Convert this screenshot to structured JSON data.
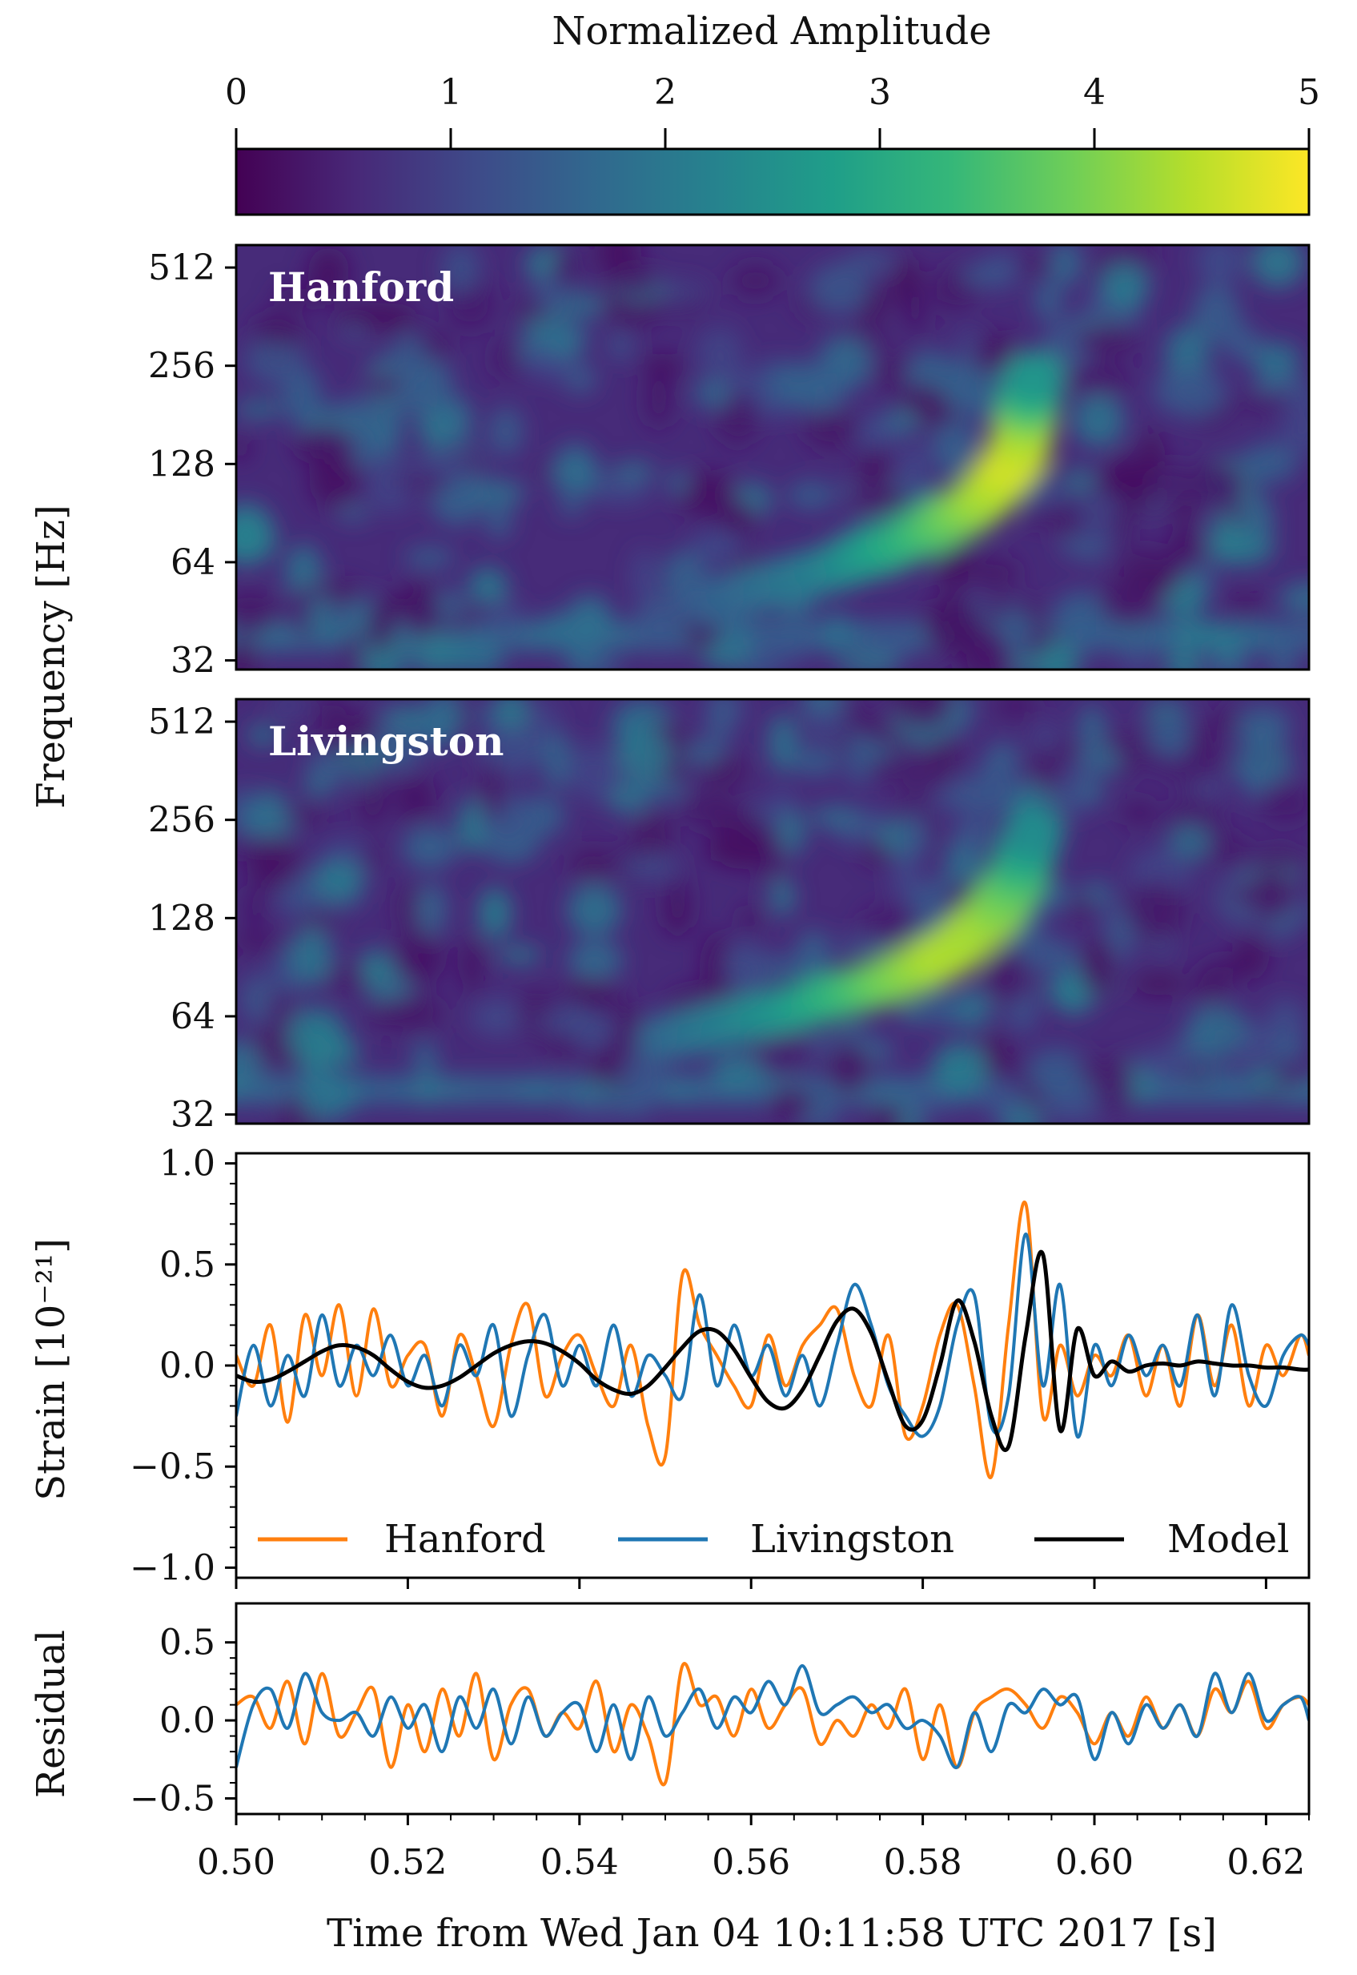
{
  "chart_data": {
    "type": "heatmap+line",
    "colorbar": {
      "label": "Normalized Amplitude",
      "ticks": [
        "0",
        "1",
        "2",
        "3",
        "4",
        "5"
      ],
      "range": [
        0,
        5
      ],
      "colormap": "viridis"
    },
    "spectrograms": [
      {
        "detector": "Hanford",
        "ylabel": "Frequency [Hz]",
        "yscale": "log2",
        "yticks": [
          "32",
          "64",
          "128",
          "256",
          "512"
        ],
        "ylim": [
          30,
          600
        ],
        "xlim": [
          0.5,
          0.625
        ],
        "chirp": [
          {
            "t": 0.555,
            "f": 48,
            "a": 1.4
          },
          {
            "t": 0.57,
            "f": 62,
            "a": 2.2
          },
          {
            "t": 0.58,
            "f": 78,
            "a": 3.3
          },
          {
            "t": 0.587,
            "f": 100,
            "a": 4.2
          },
          {
            "t": 0.591,
            "f": 135,
            "a": 4.7
          },
          {
            "t": 0.592,
            "f": 175,
            "a": 4.3
          },
          {
            "t": 0.593,
            "f": 240,
            "a": 2.6
          }
        ]
      },
      {
        "detector": "Livingston",
        "ylabel": "Frequency [Hz]",
        "yscale": "log2",
        "yticks": [
          "32",
          "64",
          "128",
          "256",
          "512"
        ],
        "ylim": [
          30,
          600
        ],
        "xlim": [
          0.5,
          0.625
        ],
        "chirp": [
          {
            "t": 0.55,
            "f": 55,
            "a": 1.6
          },
          {
            "t": 0.565,
            "f": 68,
            "a": 2.6
          },
          {
            "t": 0.576,
            "f": 82,
            "a": 3.8
          },
          {
            "t": 0.583,
            "f": 100,
            "a": 4.4
          },
          {
            "t": 0.588,
            "f": 128,
            "a": 4.3
          },
          {
            "t": 0.591,
            "f": 170,
            "a": 3.7
          },
          {
            "t": 0.593,
            "f": 240,
            "a": 2.4
          }
        ]
      }
    ],
    "strain": {
      "ylabel": "Strain [10⁻²¹]",
      "ylim": [
        -1.05,
        1.05
      ],
      "yticks": [
        -1.0,
        -0.5,
        0.0,
        0.5,
        1.0
      ],
      "ytick_labels": [
        "−1.0",
        "−0.5",
        "0.0",
        "0.5",
        "1.0"
      ],
      "legend_position": "bottom",
      "series": [
        {
          "name": "Hanford",
          "color": "#ff7f0e",
          "x": [
            0.5,
            0.502,
            0.504,
            0.506,
            0.508,
            0.51,
            0.512,
            0.514,
            0.516,
            0.518,
            0.52,
            0.522,
            0.524,
            0.526,
            0.528,
            0.53,
            0.532,
            0.534,
            0.536,
            0.538,
            0.54,
            0.542,
            0.544,
            0.546,
            0.548,
            0.55,
            0.552,
            0.554,
            0.556,
            0.558,
            0.56,
            0.562,
            0.564,
            0.566,
            0.568,
            0.57,
            0.572,
            0.574,
            0.576,
            0.578,
            0.58,
            0.582,
            0.584,
            0.586,
            0.588,
            0.59,
            0.592,
            0.594,
            0.596,
            0.598,
            0.6,
            0.602,
            0.604,
            0.606,
            0.608,
            0.61,
            0.612,
            0.614,
            0.616,
            0.618,
            0.62,
            0.622,
            0.624,
            0.625
          ],
          "y": [
            0.05,
            -0.1,
            0.2,
            -0.28,
            0.25,
            -0.05,
            0.3,
            -0.15,
            0.28,
            -0.1,
            0.05,
            0.1,
            -0.25,
            0.15,
            -0.05,
            -0.3,
            0.1,
            0.3,
            -0.15,
            0.05,
            0.15,
            -0.05,
            -0.2,
            0.1,
            -0.3,
            -0.45,
            0.45,
            0.2,
            0.05,
            -0.1,
            -0.2,
            0.15,
            -0.1,
            0.1,
            0.2,
            0.28,
            -0.05,
            -0.2,
            0.15,
            -0.35,
            -0.2,
            0.15,
            0.3,
            -0.1,
            -0.55,
            0.2,
            0.8,
            -0.25,
            0.1,
            -0.15,
            0.05,
            -0.05,
            0.15,
            -0.15,
            0.1,
            -0.2,
            0.25,
            -0.1,
            0.2,
            -0.2,
            0.1,
            -0.05,
            0.15,
            0.05
          ]
        },
        {
          "name": "Livingston",
          "color": "#1f77b4",
          "x": [
            0.5,
            0.502,
            0.504,
            0.506,
            0.508,
            0.51,
            0.512,
            0.514,
            0.516,
            0.518,
            0.52,
            0.522,
            0.524,
            0.526,
            0.528,
            0.53,
            0.532,
            0.534,
            0.536,
            0.538,
            0.54,
            0.542,
            0.544,
            0.546,
            0.548,
            0.55,
            0.552,
            0.554,
            0.556,
            0.558,
            0.56,
            0.562,
            0.564,
            0.566,
            0.568,
            0.57,
            0.572,
            0.574,
            0.576,
            0.578,
            0.58,
            0.582,
            0.584,
            0.586,
            0.588,
            0.59,
            0.592,
            0.594,
            0.596,
            0.598,
            0.6,
            0.602,
            0.604,
            0.606,
            0.608,
            0.61,
            0.612,
            0.614,
            0.616,
            0.618,
            0.62,
            0.622,
            0.624,
            0.625
          ],
          "y": [
            -0.25,
            0.1,
            -0.2,
            0.05,
            -0.15,
            0.25,
            -0.1,
            0.1,
            -0.05,
            0.15,
            -0.1,
            0.05,
            -0.2,
            0.1,
            -0.05,
            0.2,
            -0.25,
            0.05,
            0.25,
            -0.1,
            0.1,
            -0.1,
            0.2,
            -0.15,
            0.05,
            -0.05,
            -0.15,
            0.35,
            -0.1,
            0.2,
            -0.05,
            0.1,
            -0.15,
            0.05,
            -0.2,
            0.1,
            0.4,
            0.2,
            -0.1,
            -0.25,
            -0.35,
            -0.2,
            0.2,
            0.35,
            -0.3,
            -0.15,
            0.65,
            -0.1,
            0.4,
            -0.35,
            0.1,
            -0.1,
            0.15,
            -0.05,
            0.1,
            -0.1,
            0.25,
            -0.15,
            0.3,
            -0.05,
            -0.2,
            0.05,
            0.15,
            0.1
          ]
        },
        {
          "name": "Model",
          "color": "#000000",
          "x": [
            0.5,
            0.502,
            0.504,
            0.506,
            0.508,
            0.51,
            0.512,
            0.514,
            0.516,
            0.518,
            0.52,
            0.522,
            0.524,
            0.526,
            0.528,
            0.53,
            0.532,
            0.534,
            0.536,
            0.538,
            0.54,
            0.542,
            0.544,
            0.546,
            0.548,
            0.55,
            0.552,
            0.554,
            0.556,
            0.558,
            0.56,
            0.562,
            0.564,
            0.566,
            0.568,
            0.57,
            0.572,
            0.574,
            0.576,
            0.578,
            0.58,
            0.582,
            0.584,
            0.586,
            0.588,
            0.59,
            0.592,
            0.594,
            0.596,
            0.598,
            0.6,
            0.602,
            0.604,
            0.606,
            0.608,
            0.61,
            0.612,
            0.614,
            0.616,
            0.618,
            0.62,
            0.622,
            0.624,
            0.625
          ],
          "y": [
            -0.05,
            -0.08,
            -0.07,
            -0.03,
            0.02,
            0.07,
            0.1,
            0.09,
            0.05,
            -0.02,
            -0.08,
            -0.11,
            -0.1,
            -0.06,
            0.0,
            0.06,
            0.1,
            0.12,
            0.11,
            0.07,
            0.01,
            -0.07,
            -0.12,
            -0.14,
            -0.1,
            -0.01,
            0.09,
            0.17,
            0.17,
            0.08,
            -0.06,
            -0.18,
            -0.21,
            -0.12,
            0.05,
            0.22,
            0.28,
            0.16,
            -0.08,
            -0.3,
            -0.27,
            0.0,
            0.32,
            0.12,
            -0.25,
            -0.4,
            0.15,
            0.55,
            -0.32,
            0.18,
            -0.05,
            0.02,
            -0.03,
            0.0,
            0.01,
            0.0,
            0.02,
            0.01,
            0.0,
            0.0,
            -0.01,
            -0.01,
            -0.02,
            -0.02
          ]
        }
      ]
    },
    "residual": {
      "ylabel": "Residual",
      "ylim": [
        -0.6,
        0.75
      ],
      "yticks": [
        -0.5,
        0.0,
        0.5
      ],
      "ytick_labels": [
        "−0.5",
        "0.0",
        "0.5"
      ],
      "series": [
        {
          "name": "Hanford",
          "color": "#ff7f0e",
          "x": [
            0.5,
            0.502,
            0.504,
            0.506,
            0.508,
            0.51,
            0.512,
            0.514,
            0.516,
            0.518,
            0.52,
            0.522,
            0.524,
            0.526,
            0.528,
            0.53,
            0.532,
            0.534,
            0.536,
            0.538,
            0.54,
            0.542,
            0.544,
            0.546,
            0.548,
            0.55,
            0.552,
            0.554,
            0.556,
            0.558,
            0.56,
            0.562,
            0.564,
            0.566,
            0.568,
            0.57,
            0.572,
            0.574,
            0.576,
            0.578,
            0.58,
            0.582,
            0.584,
            0.586,
            0.588,
            0.59,
            0.592,
            0.594,
            0.596,
            0.598,
            0.6,
            0.602,
            0.604,
            0.606,
            0.608,
            0.61,
            0.612,
            0.614,
            0.616,
            0.618,
            0.62,
            0.622,
            0.624,
            0.625
          ],
          "y": [
            0.1,
            0.15,
            -0.05,
            0.25,
            -0.15,
            0.3,
            -0.1,
            0.05,
            0.2,
            -0.3,
            0.1,
            -0.2,
            0.2,
            -0.1,
            0.3,
            -0.25,
            0.1,
            0.2,
            -0.1,
            0.05,
            -0.05,
            0.25,
            -0.2,
            0.1,
            -0.1,
            -0.4,
            0.35,
            0.1,
            0.15,
            -0.1,
            0.2,
            -0.05,
            0.1,
            0.2,
            -0.15,
            0.0,
            -0.1,
            0.1,
            -0.05,
            0.2,
            -0.25,
            0.1,
            -0.3,
            0.05,
            0.15,
            0.2,
            0.1,
            -0.05,
            0.15,
            0.05,
            -0.15,
            0.05,
            -0.1,
            0.15,
            -0.05,
            0.1,
            -0.1,
            0.2,
            0.05,
            0.25,
            -0.05,
            0.1,
            0.15,
            0.1
          ]
        },
        {
          "name": "Livingston",
          "color": "#1f77b4",
          "x": [
            0.5,
            0.502,
            0.504,
            0.506,
            0.508,
            0.51,
            0.512,
            0.514,
            0.516,
            0.518,
            0.52,
            0.522,
            0.524,
            0.526,
            0.528,
            0.53,
            0.532,
            0.534,
            0.536,
            0.538,
            0.54,
            0.542,
            0.544,
            0.546,
            0.548,
            0.55,
            0.552,
            0.554,
            0.556,
            0.558,
            0.56,
            0.562,
            0.564,
            0.566,
            0.568,
            0.57,
            0.572,
            0.574,
            0.576,
            0.578,
            0.58,
            0.582,
            0.584,
            0.586,
            0.588,
            0.59,
            0.592,
            0.594,
            0.596,
            0.598,
            0.6,
            0.602,
            0.604,
            0.606,
            0.608,
            0.61,
            0.612,
            0.614,
            0.616,
            0.618,
            0.62,
            0.622,
            0.624,
            0.625
          ],
          "y": [
            -0.3,
            0.1,
            0.2,
            -0.05,
            0.3,
            0.05,
            0.0,
            0.05,
            -0.1,
            0.15,
            -0.05,
            0.1,
            -0.2,
            0.15,
            -0.05,
            0.2,
            -0.15,
            0.15,
            -0.1,
            0.05,
            0.1,
            -0.2,
            0.1,
            -0.25,
            0.15,
            -0.1,
            0.05,
            0.2,
            -0.05,
            0.15,
            0.05,
            0.25,
            0.1,
            0.35,
            0.05,
            0.1,
            0.15,
            0.05,
            0.1,
            -0.05,
            0.0,
            -0.1,
            -0.3,
            0.05,
            -0.2,
            0.1,
            0.05,
            0.2,
            0.1,
            0.15,
            -0.25,
            0.05,
            -0.15,
            0.1,
            -0.05,
            0.1,
            -0.1,
            0.3,
            0.05,
            0.3,
            0.0,
            0.1,
            0.15,
            0.0
          ]
        }
      ]
    },
    "xaxis": {
      "label": "Time from Wed Jan 04 10:11:58 UTC 2017 [s]",
      "xlim": [
        0.5,
        0.625
      ],
      "ticks": [
        0.5,
        0.52,
        0.54,
        0.56,
        0.58,
        0.6,
        0.62
      ],
      "tick_labels": [
        "0.50",
        "0.52",
        "0.54",
        "0.56",
        "0.58",
        "0.60",
        "0.62"
      ]
    }
  }
}
